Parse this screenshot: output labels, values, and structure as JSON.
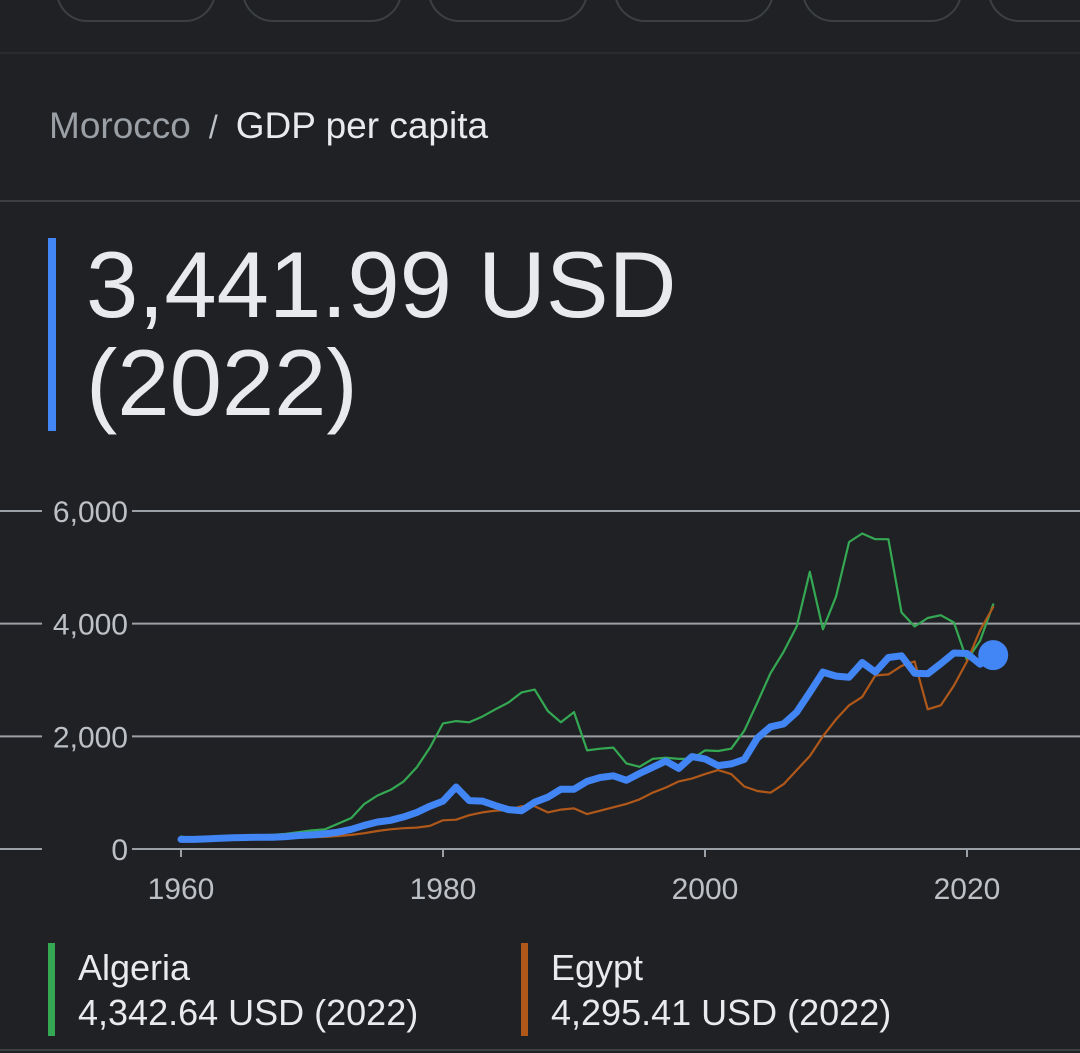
{
  "breadcrumb": {
    "country": "Morocco",
    "separator": "/",
    "metric": "GDP per capita"
  },
  "headline": {
    "value": "3,441.99 USD",
    "year_label": "(2022)"
  },
  "colors": {
    "morocco": "#4285f4",
    "algeria": "#34a853",
    "egypt": "#b0581a",
    "background": "#202124",
    "grid": "#5f6368"
  },
  "legend": [
    {
      "name": "Algeria",
      "value": "4,342.64 USD (2022)",
      "color": "#34a853"
    },
    {
      "name": "Egypt",
      "value": "4,295.41 USD (2022)",
      "color": "#b0581a"
    }
  ],
  "chart_data": {
    "type": "line",
    "xlim": [
      1953,
      2030
    ],
    "ylim": [
      0,
      6000
    ],
    "xticks": [
      1960,
      1980,
      2000,
      2020
    ],
    "xtick_labels": [
      "1960",
      "1980",
      "2000",
      "2020"
    ],
    "yticks": [
      0,
      2000,
      4000,
      6000
    ],
    "ytick_labels": [
      "0",
      "2,000",
      "4,000",
      "6,000"
    ],
    "grid": true,
    "x": [
      1960,
      1961,
      1962,
      1963,
      1964,
      1965,
      1966,
      1967,
      1968,
      1969,
      1970,
      1971,
      1972,
      1973,
      1974,
      1975,
      1976,
      1977,
      1978,
      1979,
      1980,
      1981,
      1982,
      1983,
      1984,
      1985,
      1986,
      1987,
      1988,
      1989,
      1990,
      1991,
      1992,
      1993,
      1994,
      1995,
      1996,
      1997,
      1998,
      1999,
      2000,
      2001,
      2002,
      2003,
      2004,
      2005,
      2006,
      2007,
      2008,
      2009,
      2010,
      2011,
      2012,
      2013,
      2014,
      2015,
      2016,
      2017,
      2018,
      2019,
      2020,
      2021,
      2022
    ],
    "series": [
      {
        "name": "Algeria",
        "color": "#34a853",
        "values": [
          220,
          190,
          200,
          210,
          220,
          230,
          240,
          250,
          270,
          300,
          330,
          350,
          450,
          550,
          800,
          950,
          1050,
          1200,
          1450,
          1800,
          2230,
          2270,
          2250,
          2350,
          2480,
          2600,
          2780,
          2830,
          2450,
          2250,
          2430,
          1750,
          1780,
          1800,
          1520,
          1460,
          1600,
          1620,
          1600,
          1600,
          1750,
          1740,
          1780,
          2100,
          2600,
          3120,
          3500,
          3950,
          4920,
          3900,
          4480,
          5450,
          5600,
          5500,
          5500,
          4200,
          3950,
          4100,
          4150,
          4020,
          3350,
          3700,
          4342.64
        ]
      },
      {
        "name": "Egypt",
        "color": "#b0581a",
        "values": [
          150,
          155,
          160,
          165,
          170,
          170,
          180,
          185,
          190,
          200,
          210,
          215,
          230,
          250,
          280,
          320,
          350,
          370,
          380,
          410,
          510,
          520,
          600,
          650,
          680,
          690,
          760,
          760,
          650,
          700,
          720,
          620,
          680,
          740,
          800,
          880,
          1000,
          1090,
          1200,
          1250,
          1330,
          1400,
          1330,
          1110,
          1030,
          1000,
          1150,
          1400,
          1650,
          2000,
          2300,
          2550,
          2700,
          3080,
          3100,
          3250,
          3330,
          2480,
          2550,
          2900,
          3330,
          3880,
          4295.41
        ]
      },
      {
        "name": "Morocco",
        "color": "#4285f4",
        "values": [
          170,
          170,
          180,
          190,
          200,
          205,
          210,
          210,
          220,
          240,
          250,
          270,
          300,
          350,
          420,
          480,
          510,
          570,
          650,
          760,
          850,
          1100,
          860,
          850,
          770,
          700,
          680,
          830,
          920,
          1060,
          1060,
          1200,
          1270,
          1300,
          1220,
          1340,
          1450,
          1560,
          1430,
          1640,
          1600,
          1480,
          1510,
          1590,
          1970,
          2170,
          2220,
          2430,
          2780,
          3140,
          3070,
          3050,
          3310,
          3140,
          3400,
          3430,
          3120,
          3110,
          3290,
          3480,
          3470,
          3280,
          3441.99
        ]
      }
    ]
  }
}
